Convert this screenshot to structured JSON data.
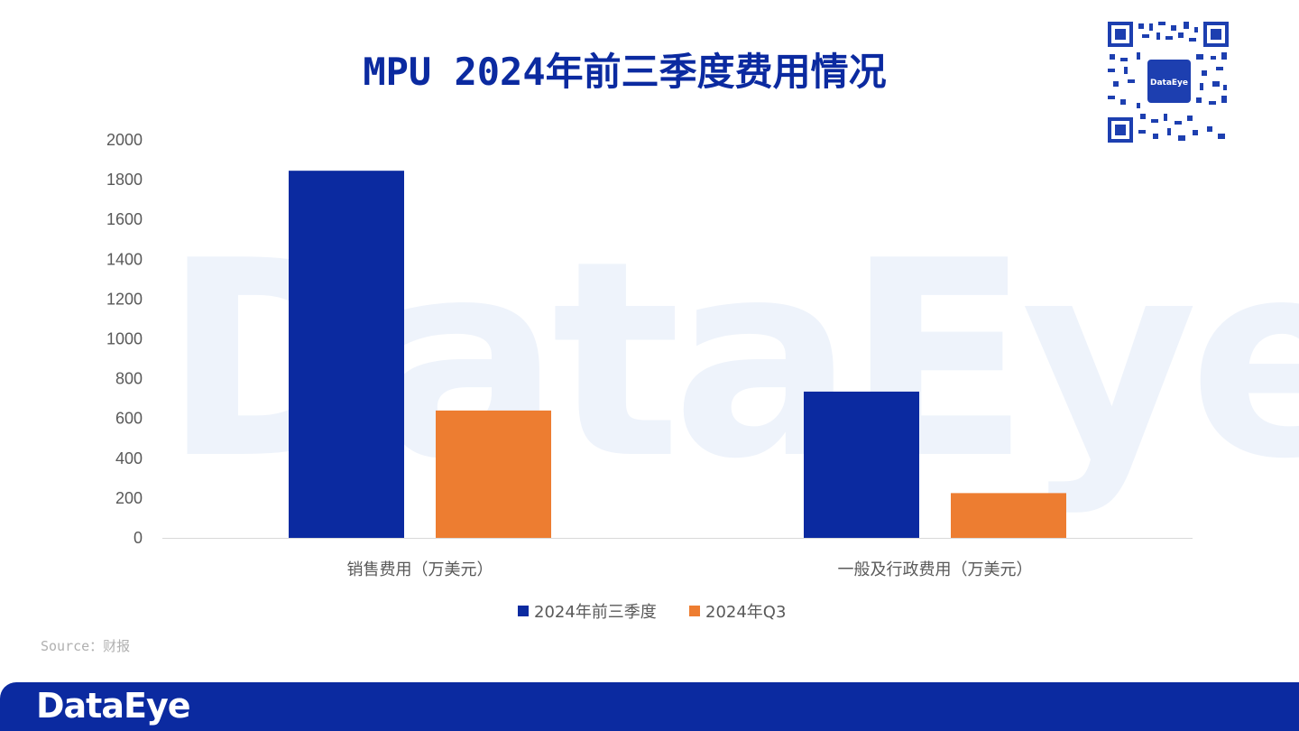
{
  "title": "MPU 2024年前三季度费用情况",
  "watermark": "DataEye",
  "qr_label": "DataEye",
  "source": "Source：财报",
  "footer": {
    "brand": "DataEye"
  },
  "chart_data": {
    "type": "bar",
    "categories": [
      "销售费用（万美元）",
      "一般及行政费用（万美元）"
    ],
    "series": [
      {
        "name": "2024年前三季度",
        "values": [
          1845,
          735
        ],
        "color": "#0b2aa0"
      },
      {
        "name": "2024年Q3",
        "values": [
          640,
          225
        ],
        "color": "#ed7d31"
      }
    ],
    "ylim": [
      0,
      2000
    ],
    "yticks": [
      0,
      200,
      400,
      600,
      800,
      1000,
      1200,
      1400,
      1600,
      1800,
      2000
    ],
    "grid": false,
    "legend": "bottom"
  }
}
